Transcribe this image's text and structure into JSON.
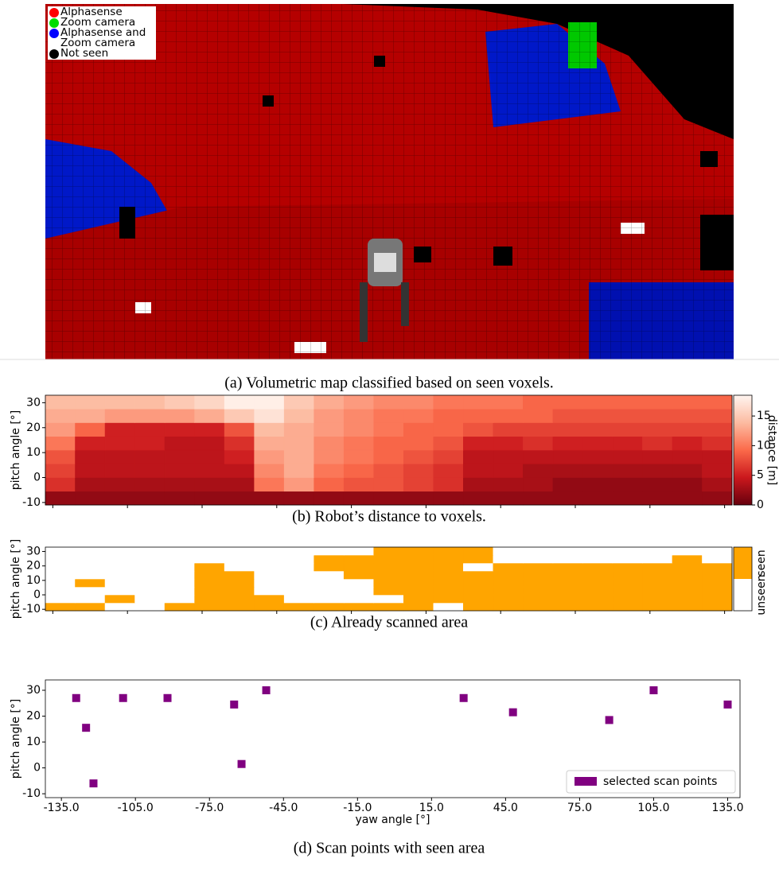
{
  "image_panel": {
    "caption": "(a) Volumetric map classified based on seen voxels.",
    "legend": [
      {
        "label": "Alphasense",
        "color": "#ff0000"
      },
      {
        "label": "Zoom camera",
        "color": "#00dd00"
      },
      {
        "label": "Alphasense and Zoom camera",
        "color": "#0000ff"
      },
      {
        "label": "Not seen",
        "color": "#000000"
      }
    ]
  },
  "chart_data": [
    {
      "type": "heatmap",
      "caption": "(b) Robot’s distance to voxels.",
      "y_label": "pitch angle [°]",
      "xlim": [
        -138,
        138
      ],
      "ylim": [
        -11,
        33
      ],
      "xticks": [
        -135,
        -105,
        -75,
        -45,
        -15,
        15,
        45,
        75,
        105,
        135
      ],
      "xtick_labels": false,
      "yticks": [
        30,
        20,
        10,
        0,
        -10
      ],
      "xbins": [
        -138,
        -126,
        -114,
        -102,
        -90,
        -78,
        -66,
        -54,
        -42,
        -30,
        -18,
        -6,
        6,
        18,
        30,
        42,
        54,
        66,
        78,
        90,
        102,
        114,
        126,
        138
      ],
      "ybins": [
        -11,
        -5.5,
        0,
        5.5,
        11,
        16.5,
        22,
        27.5,
        33
      ],
      "z": [
        [
          2,
          2,
          2,
          2,
          2,
          2,
          2,
          2,
          2,
          2,
          2,
          2,
          2,
          2,
          2,
          2,
          2,
          2,
          2,
          2,
          2,
          2,
          2
        ],
        [
          6,
          3,
          3,
          3,
          3,
          3,
          3,
          10,
          12,
          9,
          8,
          8,
          7,
          6,
          3,
          3,
          3,
          2,
          2,
          2,
          2,
          2,
          3
        ],
        [
          7,
          4,
          4,
          4,
          4,
          4,
          4,
          11,
          13,
          10,
          9,
          8,
          7,
          6,
          4,
          4,
          3,
          3,
          3,
          3,
          3,
          3,
          4
        ],
        [
          8,
          4,
          4,
          4,
          4,
          4,
          5,
          12,
          13,
          11,
          10,
          9,
          8,
          7,
          4,
          4,
          4,
          4,
          4,
          4,
          4,
          4,
          4
        ],
        [
          10,
          5,
          5,
          5,
          4,
          4,
          6,
          13,
          13,
          11,
          10,
          9,
          9,
          8,
          5,
          5,
          6,
          5,
          5,
          5,
          6,
          5,
          6
        ],
        [
          12,
          9,
          5,
          5,
          5,
          5,
          8,
          14,
          13,
          12,
          11,
          10,
          9,
          9,
          8,
          7,
          7,
          7,
          7,
          7,
          7,
          7,
          7
        ],
        [
          13,
          13,
          12,
          12,
          12,
          13,
          15,
          17,
          14,
          12,
          11,
          10,
          10,
          9,
          9,
          9,
          9,
          8,
          8,
          8,
          8,
          8,
          8
        ],
        [
          14,
          14,
          14,
          14,
          15,
          16,
          18,
          18,
          15,
          13,
          12,
          11,
          11,
          10,
          10,
          10,
          9,
          9,
          9,
          9,
          9,
          9,
          9
        ]
      ],
      "colorbar": {
        "label": "distance [m]",
        "lim": [
          0,
          18.5
        ],
        "ticks": [
          0,
          5,
          10,
          15
        ],
        "colormap": [
          "#67000d",
          "#cb181d",
          "#fb6a4a",
          "#fcbba1",
          "#fff5f0"
        ]
      }
    },
    {
      "type": "heatmap",
      "caption": "(c) Already scanned area",
      "y_label": "pitch angle [°]",
      "xlim": [
        -138,
        138
      ],
      "ylim": [
        -11,
        33
      ],
      "xticks": [
        -135,
        -105,
        -75,
        -45,
        -15,
        15,
        45,
        75,
        105,
        135
      ],
      "xtick_labels": false,
      "yticks": [
        30,
        20,
        10,
        0,
        -10
      ],
      "xbins": [
        -138,
        -126,
        -114,
        -102,
        -90,
        -78,
        -66,
        -54,
        -42,
        -30,
        -18,
        -6,
        6,
        18,
        30,
        42,
        54,
        66,
        78,
        90,
        102,
        114,
        126,
        138
      ],
      "ybins": [
        -11,
        -5.5,
        0,
        5.5,
        11,
        16.5,
        22,
        27.5,
        33
      ],
      "z": [
        [
          1,
          1,
          0,
          0,
          1,
          1,
          1,
          1,
          1,
          1,
          1,
          1,
          1,
          0,
          1,
          1,
          1,
          1,
          1,
          1,
          1,
          1,
          1
        ],
        [
          0,
          0,
          1,
          0,
          0,
          1,
          1,
          1,
          0,
          0,
          0,
          0,
          1,
          1,
          1,
          1,
          1,
          1,
          1,
          1,
          1,
          1,
          1
        ],
        [
          0,
          0,
          0,
          0,
          0,
          1,
          1,
          0,
          0,
          0,
          0,
          1,
          1,
          1,
          1,
          1,
          1,
          1,
          1,
          1,
          1,
          1,
          1
        ],
        [
          0,
          1,
          0,
          0,
          0,
          1,
          1,
          0,
          0,
          0,
          0,
          1,
          1,
          1,
          1,
          1,
          1,
          1,
          1,
          1,
          1,
          1,
          1
        ],
        [
          0,
          0,
          0,
          0,
          0,
          1,
          1,
          0,
          0,
          0,
          1,
          1,
          1,
          1,
          1,
          1,
          1,
          1,
          1,
          1,
          1,
          1,
          1
        ],
        [
          0,
          0,
          0,
          0,
          0,
          1,
          0,
          0,
          0,
          1,
          1,
          1,
          1,
          1,
          0,
          1,
          1,
          1,
          1,
          1,
          1,
          1,
          1
        ],
        [
          0,
          0,
          0,
          0,
          0,
          0,
          0,
          0,
          0,
          1,
          1,
          1,
          1,
          1,
          1,
          0,
          0,
          0,
          0,
          0,
          0,
          1,
          0
        ],
        [
          0,
          0,
          0,
          0,
          0,
          0,
          0,
          0,
          0,
          0,
          0,
          1,
          1,
          1,
          1,
          0,
          0,
          0,
          0,
          0,
          0,
          0,
          0
        ]
      ],
      "colorbar": {
        "categories": [
          "unseen",
          "seen"
        ],
        "colors": [
          "#ffffff",
          "#ffa500"
        ]
      }
    },
    {
      "type": "scatter",
      "caption": "(d) Scan points with seen area",
      "x_label": "yaw angle [°]",
      "y_label": "pitch angle [°]",
      "xlim": [
        -141.5,
        140
      ],
      "ylim": [
        -11.5,
        34
      ],
      "xticks": [
        {
          "value": -135,
          "label": "-135.0"
        },
        {
          "value": -105,
          "label": "-105.0"
        },
        {
          "value": -75,
          "label": "-75.0"
        },
        {
          "value": -45,
          "label": "-45.0"
        },
        {
          "value": -15,
          "label": "-15.0"
        },
        {
          "value": 15,
          "label": "15.0"
        },
        {
          "value": 45,
          "label": "45.0"
        },
        {
          "value": 75,
          "label": "75.0"
        },
        {
          "value": 105,
          "label": "105.0"
        },
        {
          "value": 135,
          "label": "135.0"
        }
      ],
      "yticks": [
        30,
        20,
        10,
        0,
        -10
      ],
      "legend": "lower right",
      "series": [
        {
          "name": "selected scan points",
          "color": "#800080",
          "x": [
            -129,
            -125,
            -122,
            -110,
            -92,
            -65,
            -62,
            -52,
            28,
            48,
            87,
            105,
            135
          ],
          "y": [
            27,
            15.5,
            -6,
            27,
            27,
            24.5,
            1.5,
            30,
            27,
            21.5,
            18.5,
            30,
            24.5
          ]
        }
      ]
    }
  ]
}
